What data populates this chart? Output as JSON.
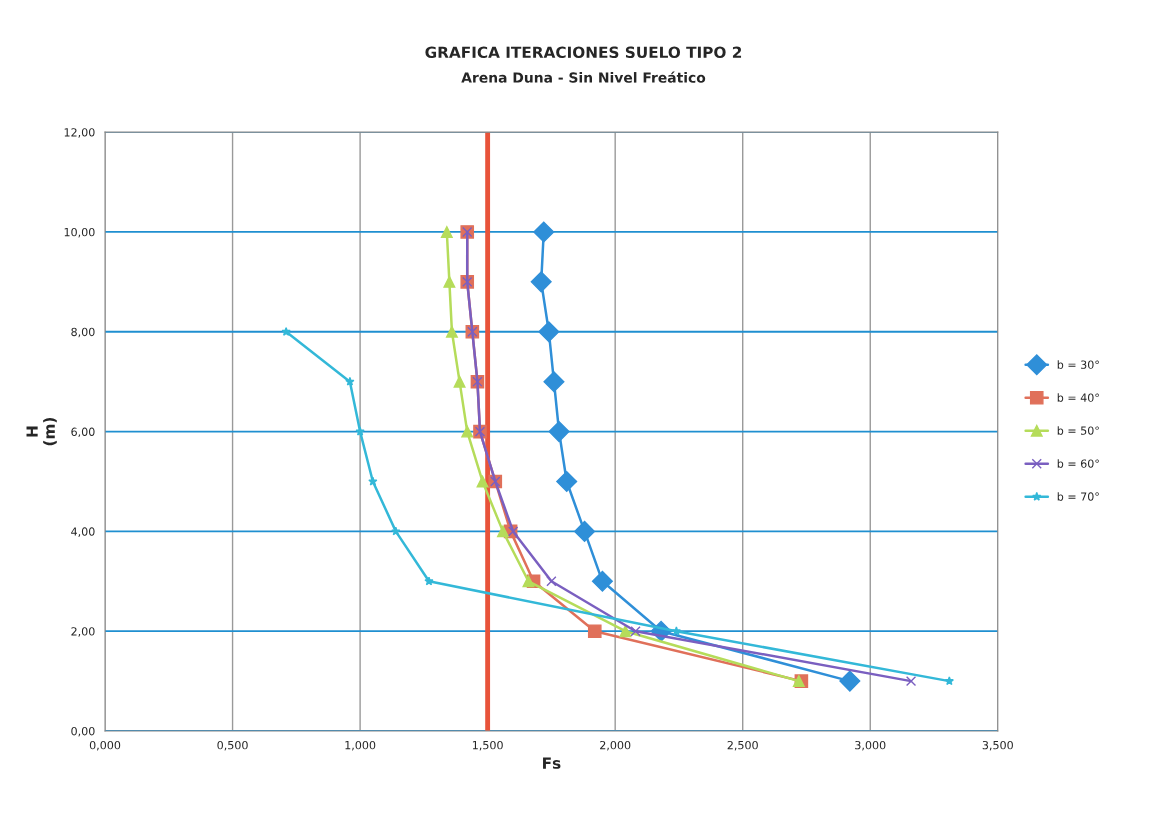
{
  "chart_data": {
    "type": "line",
    "title": "GRAFICA ITERACIONES SUELO TIPO 2",
    "subtitle": "Arena Duna - Sin Nivel Freático",
    "xlabel": "Fs",
    "ylabel": "H\n(m)",
    "xlim": [
      0,
      3.5
    ],
    "ylim": [
      0,
      12
    ],
    "xticks": [
      {
        "value": 0,
        "label": "0,000"
      },
      {
        "value": 0.5,
        "label": "0,500"
      },
      {
        "value": 1,
        "label": "1,000"
      },
      {
        "value": 1.5,
        "label": "1,500"
      },
      {
        "value": 2,
        "label": "2,000"
      },
      {
        "value": 2.5,
        "label": "2,500"
      },
      {
        "value": 3,
        "label": "3,000"
      },
      {
        "value": 3.5,
        "label": "3,500"
      }
    ],
    "yticks": [
      {
        "value": 0,
        "label": "0,00"
      },
      {
        "value": 2,
        "label": "2,00"
      },
      {
        "value": 4,
        "label": "4,00"
      },
      {
        "value": 6,
        "label": "6,00"
      },
      {
        "value": 8,
        "label": "8,00"
      },
      {
        "value": 10,
        "label": "10,00"
      },
      {
        "value": 12,
        "label": "12,00"
      }
    ],
    "grid": true,
    "legend": "right",
    "series": [
      {
        "name": "b = 30°",
        "color": "#2f8fd8",
        "marker": "diamond",
        "x": [
          1.72,
          1.71,
          1.74,
          1.76,
          1.78,
          1.81,
          1.88,
          1.95,
          2.18,
          2.92
        ],
        "values": [
          10,
          9,
          8,
          7,
          6,
          5,
          4,
          3,
          2,
          1
        ]
      },
      {
        "name": "b = 40°",
        "color": "#e0705a",
        "marker": "square",
        "x": [
          1.42,
          1.42,
          1.44,
          1.46,
          1.47,
          1.53,
          1.59,
          1.68,
          1.92,
          2.73
        ],
        "values": [
          10,
          9,
          8,
          7,
          6,
          5,
          4,
          3,
          2,
          1
        ]
      },
      {
        "name": "b = 50°",
        "color": "#b5dc5a",
        "marker": "triangle",
        "x": [
          1.34,
          1.35,
          1.36,
          1.39,
          1.42,
          1.48,
          1.56,
          1.66,
          2.04,
          2.72
        ],
        "values": [
          10,
          9,
          8,
          7,
          6,
          5,
          4,
          3,
          2,
          1
        ]
      },
      {
        "name": "b = 60°",
        "color": "#7a5fc0",
        "marker": "cross",
        "x": [
          1.42,
          1.42,
          1.44,
          1.46,
          1.47,
          1.53,
          1.6,
          1.75,
          2.08,
          3.16
        ],
        "values": [
          10,
          9,
          8,
          7,
          6,
          5,
          4,
          3,
          2,
          1
        ]
      },
      {
        "name": "b = 70°",
        "color": "#33b8d8",
        "marker": "star",
        "x": [
          0.71,
          0.96,
          1.0,
          1.05,
          1.14,
          1.27,
          2.24,
          3.31
        ],
        "values": [
          8,
          7,
          6,
          5,
          4,
          3,
          2,
          1
        ]
      }
    ],
    "ref_lines": [
      {
        "axis": "x",
        "value": 1.5,
        "color": "#e8533a"
      }
    ]
  }
}
